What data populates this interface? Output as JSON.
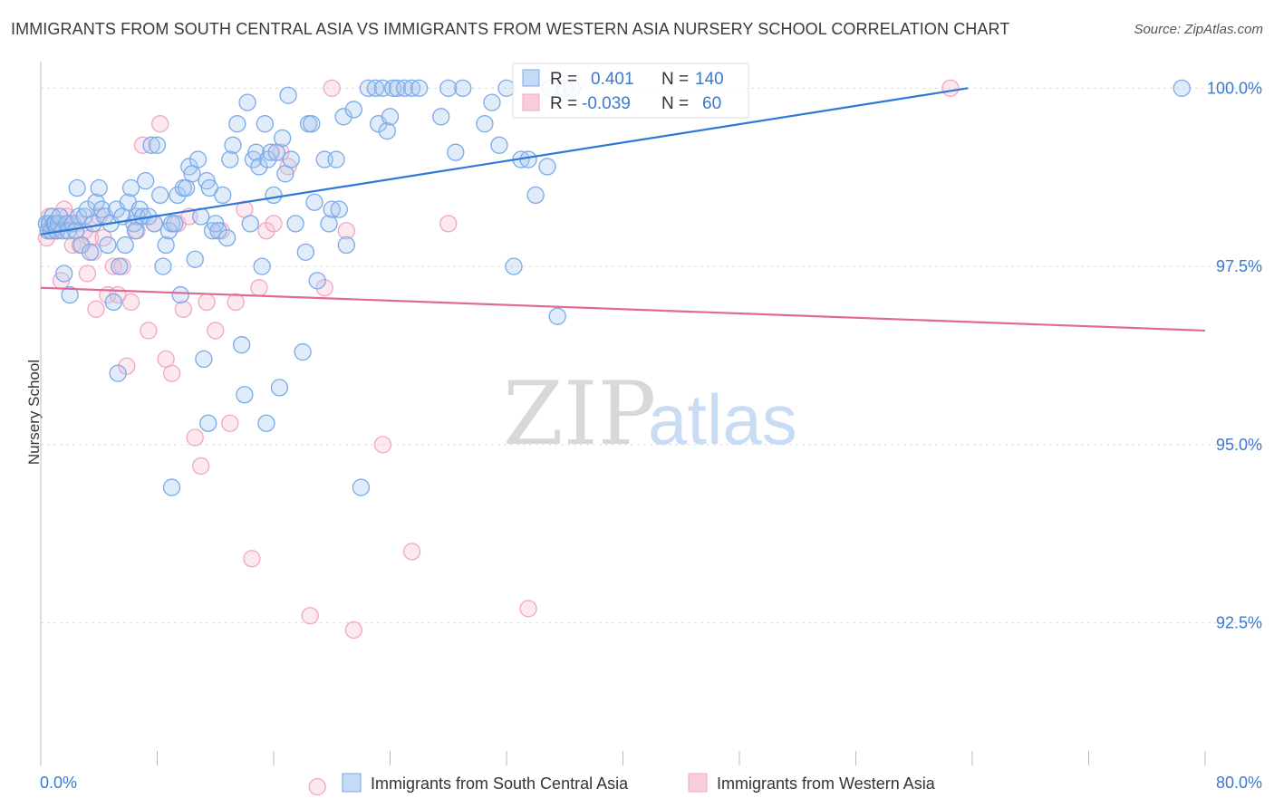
{
  "header": {
    "title": "IMMIGRANTS FROM SOUTH CENTRAL ASIA VS IMMIGRANTS FROM WESTERN ASIA NURSERY SCHOOL CORRELATION CHART",
    "source": "Source: ZipAtlas.com"
  },
  "watermark": {
    "zip": "ZIP",
    "atlas": "atlas"
  },
  "colors": {
    "blue": "#7aaae8",
    "blue_line": "#2f78d6",
    "blue_text": "#3b78d0",
    "pink": "#f3a6c0",
    "pink_line": "#e06a95",
    "grid": "#dcdcdc"
  },
  "legend_box": {
    "rows": [
      {
        "r_label": "R =",
        "r_value": "0.401",
        "n_label": "N =",
        "n_value": "140"
      },
      {
        "r_label": "R =",
        "r_value": "-0.039",
        "n_label": "N =",
        "n_value": "60"
      }
    ]
  },
  "bottom_legend": [
    {
      "label": "Immigrants from South Central Asia"
    },
    {
      "label": "Immigrants from Western Asia"
    }
  ],
  "chart_data": {
    "type": "scatter",
    "title": "IMMIGRANTS FROM SOUTH CENTRAL ASIA VS IMMIGRANTS FROM WESTERN ASIA NURSERY SCHOOL CORRELATION CHART",
    "xlabel": "",
    "ylabel": "Nursery School",
    "xlim": [
      0,
      80
    ],
    "ylim": [
      90.5,
      100.5
    ],
    "x_tick_labels": [
      "0.0%",
      "80.0%"
    ],
    "y_ticks": [
      92.5,
      95.0,
      97.5,
      100.0
    ],
    "y_tick_labels": [
      "92.5%",
      "95.0%",
      "97.5%",
      "100.0%"
    ],
    "grid": true,
    "legend": "top-center and bottom",
    "series": [
      {
        "name": "Immigrants from South Central Asia",
        "color": "#7aaae8",
        "trend": {
          "x": [
            0,
            63.7
          ],
          "y": [
            97.95,
            100.0
          ]
        },
        "points": [
          [
            0.4,
            98.1
          ],
          [
            0.5,
            98.0
          ],
          [
            0.6,
            98.1
          ],
          [
            0.7,
            98.0
          ],
          [
            0.8,
            98.2
          ],
          [
            0.9,
            98.1
          ],
          [
            1.0,
            98.1
          ],
          [
            1.1,
            98.0
          ],
          [
            1.2,
            98.1
          ],
          [
            1.3,
            98.2
          ],
          [
            1.5,
            98.0
          ],
          [
            1.6,
            97.4
          ],
          [
            1.8,
            98.1
          ],
          [
            1.9,
            98.0
          ],
          [
            2.0,
            97.1
          ],
          [
            2.2,
            98.1
          ],
          [
            2.4,
            98.0
          ],
          [
            2.5,
            98.6
          ],
          [
            2.6,
            98.2
          ],
          [
            2.8,
            97.8
          ],
          [
            3.0,
            98.2
          ],
          [
            3.2,
            98.3
          ],
          [
            3.4,
            97.7
          ],
          [
            3.6,
            98.1
          ],
          [
            3.8,
            98.4
          ],
          [
            4.0,
            98.6
          ],
          [
            4.2,
            98.3
          ],
          [
            4.4,
            98.2
          ],
          [
            4.6,
            97.8
          ],
          [
            4.8,
            98.1
          ],
          [
            5.0,
            97.0
          ],
          [
            5.2,
            98.3
          ],
          [
            5.4,
            97.5
          ],
          [
            5.6,
            98.2
          ],
          [
            5.8,
            97.8
          ],
          [
            6.0,
            98.4
          ],
          [
            6.2,
            98.6
          ],
          [
            6.4,
            98.1
          ],
          [
            6.6,
            98.2
          ],
          [
            6.8,
            98.3
          ],
          [
            7.0,
            98.2
          ],
          [
            7.2,
            98.7
          ],
          [
            7.4,
            98.2
          ],
          [
            7.6,
            99.2
          ],
          [
            7.8,
            98.1
          ],
          [
            8.0,
            99.2
          ],
          [
            8.2,
            98.5
          ],
          [
            8.4,
            97.5
          ],
          [
            8.6,
            97.8
          ],
          [
            8.8,
            98.0
          ],
          [
            9.0,
            98.1
          ],
          [
            9.2,
            98.1
          ],
          [
            9.4,
            98.5
          ],
          [
            9.6,
            97.1
          ],
          [
            9.8,
            98.6
          ],
          [
            10.0,
            98.6
          ],
          [
            10.2,
            98.9
          ],
          [
            10.4,
            98.8
          ],
          [
            10.6,
            97.6
          ],
          [
            10.8,
            99.0
          ],
          [
            11.0,
            98.2
          ],
          [
            11.2,
            96.2
          ],
          [
            11.4,
            98.7
          ],
          [
            11.6,
            98.6
          ],
          [
            11.8,
            98.0
          ],
          [
            12.0,
            98.1
          ],
          [
            12.2,
            98.0
          ],
          [
            12.5,
            98.5
          ],
          [
            12.8,
            97.9
          ],
          [
            13.0,
            99.0
          ],
          [
            13.2,
            99.2
          ],
          [
            13.5,
            99.5
          ],
          [
            13.8,
            96.4
          ],
          [
            14.0,
            95.7
          ],
          [
            14.2,
            99.8
          ],
          [
            14.4,
            98.1
          ],
          [
            14.6,
            99.0
          ],
          [
            14.8,
            99.1
          ],
          [
            15.0,
            98.9
          ],
          [
            15.2,
            97.5
          ],
          [
            15.4,
            99.5
          ],
          [
            15.6,
            99.0
          ],
          [
            15.8,
            99.1
          ],
          [
            16.0,
            98.5
          ],
          [
            16.2,
            99.1
          ],
          [
            16.4,
            95.8
          ],
          [
            16.6,
            99.3
          ],
          [
            16.8,
            98.8
          ],
          [
            17.0,
            99.9
          ],
          [
            17.2,
            99.0
          ],
          [
            17.5,
            98.1
          ],
          [
            18.0,
            96.3
          ],
          [
            18.2,
            97.7
          ],
          [
            18.4,
            99.5
          ],
          [
            18.6,
            99.5
          ],
          [
            18.8,
            98.4
          ],
          [
            19.0,
            97.3
          ],
          [
            19.5,
            99.0
          ],
          [
            19.8,
            98.1
          ],
          [
            20.0,
            98.3
          ],
          [
            20.3,
            99.0
          ],
          [
            20.5,
            98.3
          ],
          [
            20.8,
            99.6
          ],
          [
            21.0,
            97.8
          ],
          [
            21.5,
            99.7
          ],
          [
            22.0,
            94.4
          ],
          [
            22.5,
            100.0
          ],
          [
            23.0,
            100.0
          ],
          [
            23.2,
            99.5
          ],
          [
            23.5,
            100.0
          ],
          [
            23.8,
            99.4
          ],
          [
            24.0,
            99.6
          ],
          [
            24.2,
            100.0
          ],
          [
            24.5,
            100.0
          ],
          [
            25.0,
            100.0
          ],
          [
            25.5,
            100.0
          ],
          [
            26.0,
            100.0
          ],
          [
            27.5,
            99.6
          ],
          [
            28.0,
            100.0
          ],
          [
            28.5,
            99.1
          ],
          [
            29.0,
            100.0
          ],
          [
            30.5,
            99.5
          ],
          [
            31.0,
            99.8
          ],
          [
            31.5,
            99.2
          ],
          [
            32.0,
            100.0
          ],
          [
            32.5,
            97.5
          ],
          [
            33.0,
            99.0
          ],
          [
            33.5,
            99.0
          ],
          [
            34.0,
            98.5
          ],
          [
            34.8,
            98.9
          ],
          [
            35.0,
            100.0
          ],
          [
            35.5,
            96.8
          ],
          [
            36.0,
            100.0
          ],
          [
            36.5,
            100.0
          ],
          [
            5.3,
            96.0
          ],
          [
            15.5,
            95.3
          ],
          [
            11.5,
            95.3
          ],
          [
            9.0,
            94.4
          ],
          [
            6.5,
            98.0
          ],
          [
            78.4,
            100.0
          ]
        ]
      },
      {
        "name": "Immigrants from Western Asia",
        "color": "#f3a6c0",
        "trend": {
          "x": [
            0,
            80
          ],
          "y": [
            97.2,
            96.6
          ]
        },
        "points": [
          [
            0.4,
            97.9
          ],
          [
            0.6,
            98.2
          ],
          [
            0.8,
            98.0
          ],
          [
            1.0,
            98.0
          ],
          [
            1.2,
            98.1
          ],
          [
            1.4,
            97.3
          ],
          [
            1.6,
            98.3
          ],
          [
            1.8,
            98.2
          ],
          [
            2.0,
            98.1
          ],
          [
            2.2,
            97.8
          ],
          [
            2.5,
            98.1
          ],
          [
            2.7,
            97.8
          ],
          [
            3.0,
            98.0
          ],
          [
            3.2,
            97.4
          ],
          [
            3.4,
            97.9
          ],
          [
            3.6,
            97.7
          ],
          [
            3.8,
            96.9
          ],
          [
            4.0,
            98.2
          ],
          [
            4.3,
            97.9
          ],
          [
            4.6,
            97.1
          ],
          [
            5.0,
            97.5
          ],
          [
            5.3,
            97.1
          ],
          [
            5.6,
            97.5
          ],
          [
            5.9,
            96.1
          ],
          [
            6.2,
            97.0
          ],
          [
            6.6,
            98.0
          ],
          [
            7.0,
            99.2
          ],
          [
            7.4,
            96.6
          ],
          [
            7.8,
            98.1
          ],
          [
            8.2,
            99.5
          ],
          [
            8.6,
            96.2
          ],
          [
            9.0,
            96.0
          ],
          [
            9.4,
            98.1
          ],
          [
            9.8,
            96.9
          ],
          [
            10.2,
            98.2
          ],
          [
            10.6,
            95.1
          ],
          [
            11.0,
            94.7
          ],
          [
            11.4,
            97.0
          ],
          [
            12.0,
            96.6
          ],
          [
            12.4,
            98.0
          ],
          [
            13.0,
            95.3
          ],
          [
            13.4,
            97.0
          ],
          [
            14.0,
            98.3
          ],
          [
            14.5,
            93.4
          ],
          [
            15.0,
            97.2
          ],
          [
            15.5,
            98.0
          ],
          [
            16.0,
            98.1
          ],
          [
            16.5,
            99.1
          ],
          [
            17.0,
            98.9
          ],
          [
            18.5,
            92.6
          ],
          [
            19.0,
            90.2
          ],
          [
            19.5,
            97.2
          ],
          [
            20.0,
            100.0
          ],
          [
            21.0,
            98.0
          ],
          [
            21.5,
            92.4
          ],
          [
            23.5,
            95.0
          ],
          [
            25.5,
            93.5
          ],
          [
            28.0,
            98.1
          ],
          [
            33.5,
            92.7
          ],
          [
            62.5,
            100.0
          ]
        ]
      }
    ]
  }
}
